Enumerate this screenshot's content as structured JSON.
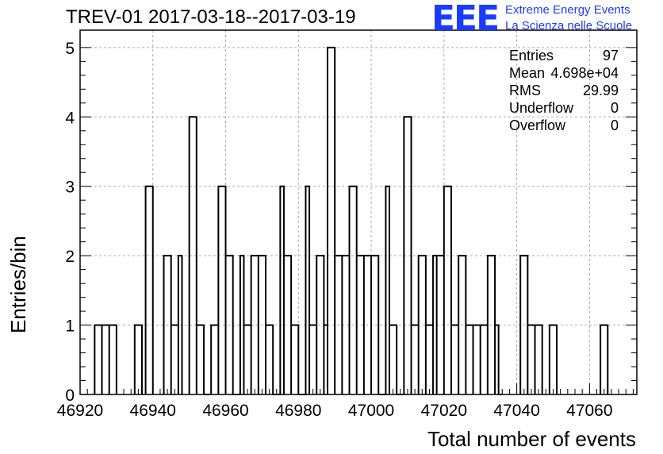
{
  "title": "TREV-01 2017-03-18--2017-03-19",
  "logo": {
    "mark": "EEE",
    "line1": "Extreme Energy Events",
    "line2": "La Scienza nelle Scuole",
    "color": "#1a3cff"
  },
  "stats": [
    {
      "label": "Entries",
      "value": "97"
    },
    {
      "label": "Mean",
      "value": "4.698e+04"
    },
    {
      "label": "RMS",
      "value": "29.99"
    },
    {
      "label": "Underflow",
      "value": "0"
    },
    {
      "label": "Overflow",
      "value": "0"
    }
  ],
  "chart_data": {
    "type": "histogram",
    "xlabel": "Total number of events",
    "ylabel": "Entries/bin",
    "xlim": [
      46920,
      47073
    ],
    "ylim": [
      0,
      5.25
    ],
    "bin_width": 2,
    "grid": true,
    "x_ticks": [
      46920,
      46940,
      46960,
      46980,
      47000,
      47020,
      47040,
      47060
    ],
    "y_ticks": [
      0,
      1,
      2,
      3,
      4,
      5
    ],
    "bins": [
      {
        "x": 46924,
        "count": 1
      },
      {
        "x": 46926,
        "count": 1
      },
      {
        "x": 46928,
        "count": 1
      },
      {
        "x": 46935,
        "count": 1
      },
      {
        "x": 46938,
        "count": 3
      },
      {
        "x": 46943,
        "count": 2
      },
      {
        "x": 46945,
        "count": 1
      },
      {
        "x": 46946,
        "count": 2
      },
      {
        "x": 46950,
        "count": 4
      },
      {
        "x": 46952,
        "count": 1
      },
      {
        "x": 46954,
        "count": 0
      },
      {
        "x": 46956,
        "count": 1
      },
      {
        "x": 46958,
        "count": 3
      },
      {
        "x": 46960,
        "count": 2
      },
      {
        "x": 46962,
        "count": 0
      },
      {
        "x": 46963,
        "count": 2
      },
      {
        "x": 46965,
        "count": 1
      },
      {
        "x": 46967,
        "count": 2
      },
      {
        "x": 46969,
        "count": 2
      },
      {
        "x": 46971,
        "count": 1
      },
      {
        "x": 46973,
        "count": 0
      },
      {
        "x": 46974,
        "count": 3
      },
      {
        "x": 46976,
        "count": 2
      },
      {
        "x": 46978,
        "count": 1
      },
      {
        "x": 46980,
        "count": 0
      },
      {
        "x": 46981,
        "count": 3
      },
      {
        "x": 46983,
        "count": 1
      },
      {
        "x": 46985,
        "count": 2
      },
      {
        "x": 46986,
        "count": 1
      },
      {
        "x": 46988,
        "count": 5
      },
      {
        "x": 46990,
        "count": 2
      },
      {
        "x": 46992,
        "count": 2
      },
      {
        "x": 46994,
        "count": 3
      },
      {
        "x": 46996,
        "count": 2
      },
      {
        "x": 46998,
        "count": 2
      },
      {
        "x": 47000,
        "count": 2
      },
      {
        "x": 47002,
        "count": 0
      },
      {
        "x": 47003,
        "count": 3
      },
      {
        "x": 47005,
        "count": 1
      },
      {
        "x": 47007,
        "count": 0
      },
      {
        "x": 47009,
        "count": 4
      },
      {
        "x": 47011,
        "count": 1
      },
      {
        "x": 47013,
        "count": 2
      },
      {
        "x": 47015,
        "count": 1
      },
      {
        "x": 47016,
        "count": 2
      },
      {
        "x": 47018,
        "count": 2
      },
      {
        "x": 47020,
        "count": 3
      },
      {
        "x": 47022,
        "count": 1
      },
      {
        "x": 47024,
        "count": 2
      },
      {
        "x": 47026,
        "count": 1
      },
      {
        "x": 47028,
        "count": 1
      },
      {
        "x": 47030,
        "count": 1
      },
      {
        "x": 47032,
        "count": 2
      },
      {
        "x": 47034,
        "count": 0
      },
      {
        "x": 47030,
        "count": 1
      },
      {
        "x": 47033,
        "count": 1
      },
      {
        "x": 47041,
        "count": 2
      },
      {
        "x": 47043,
        "count": 1
      },
      {
        "x": 47045,
        "count": 1
      },
      {
        "x": 47049,
        "count": 1
      },
      {
        "x": 47063,
        "count": 1
      }
    ]
  }
}
